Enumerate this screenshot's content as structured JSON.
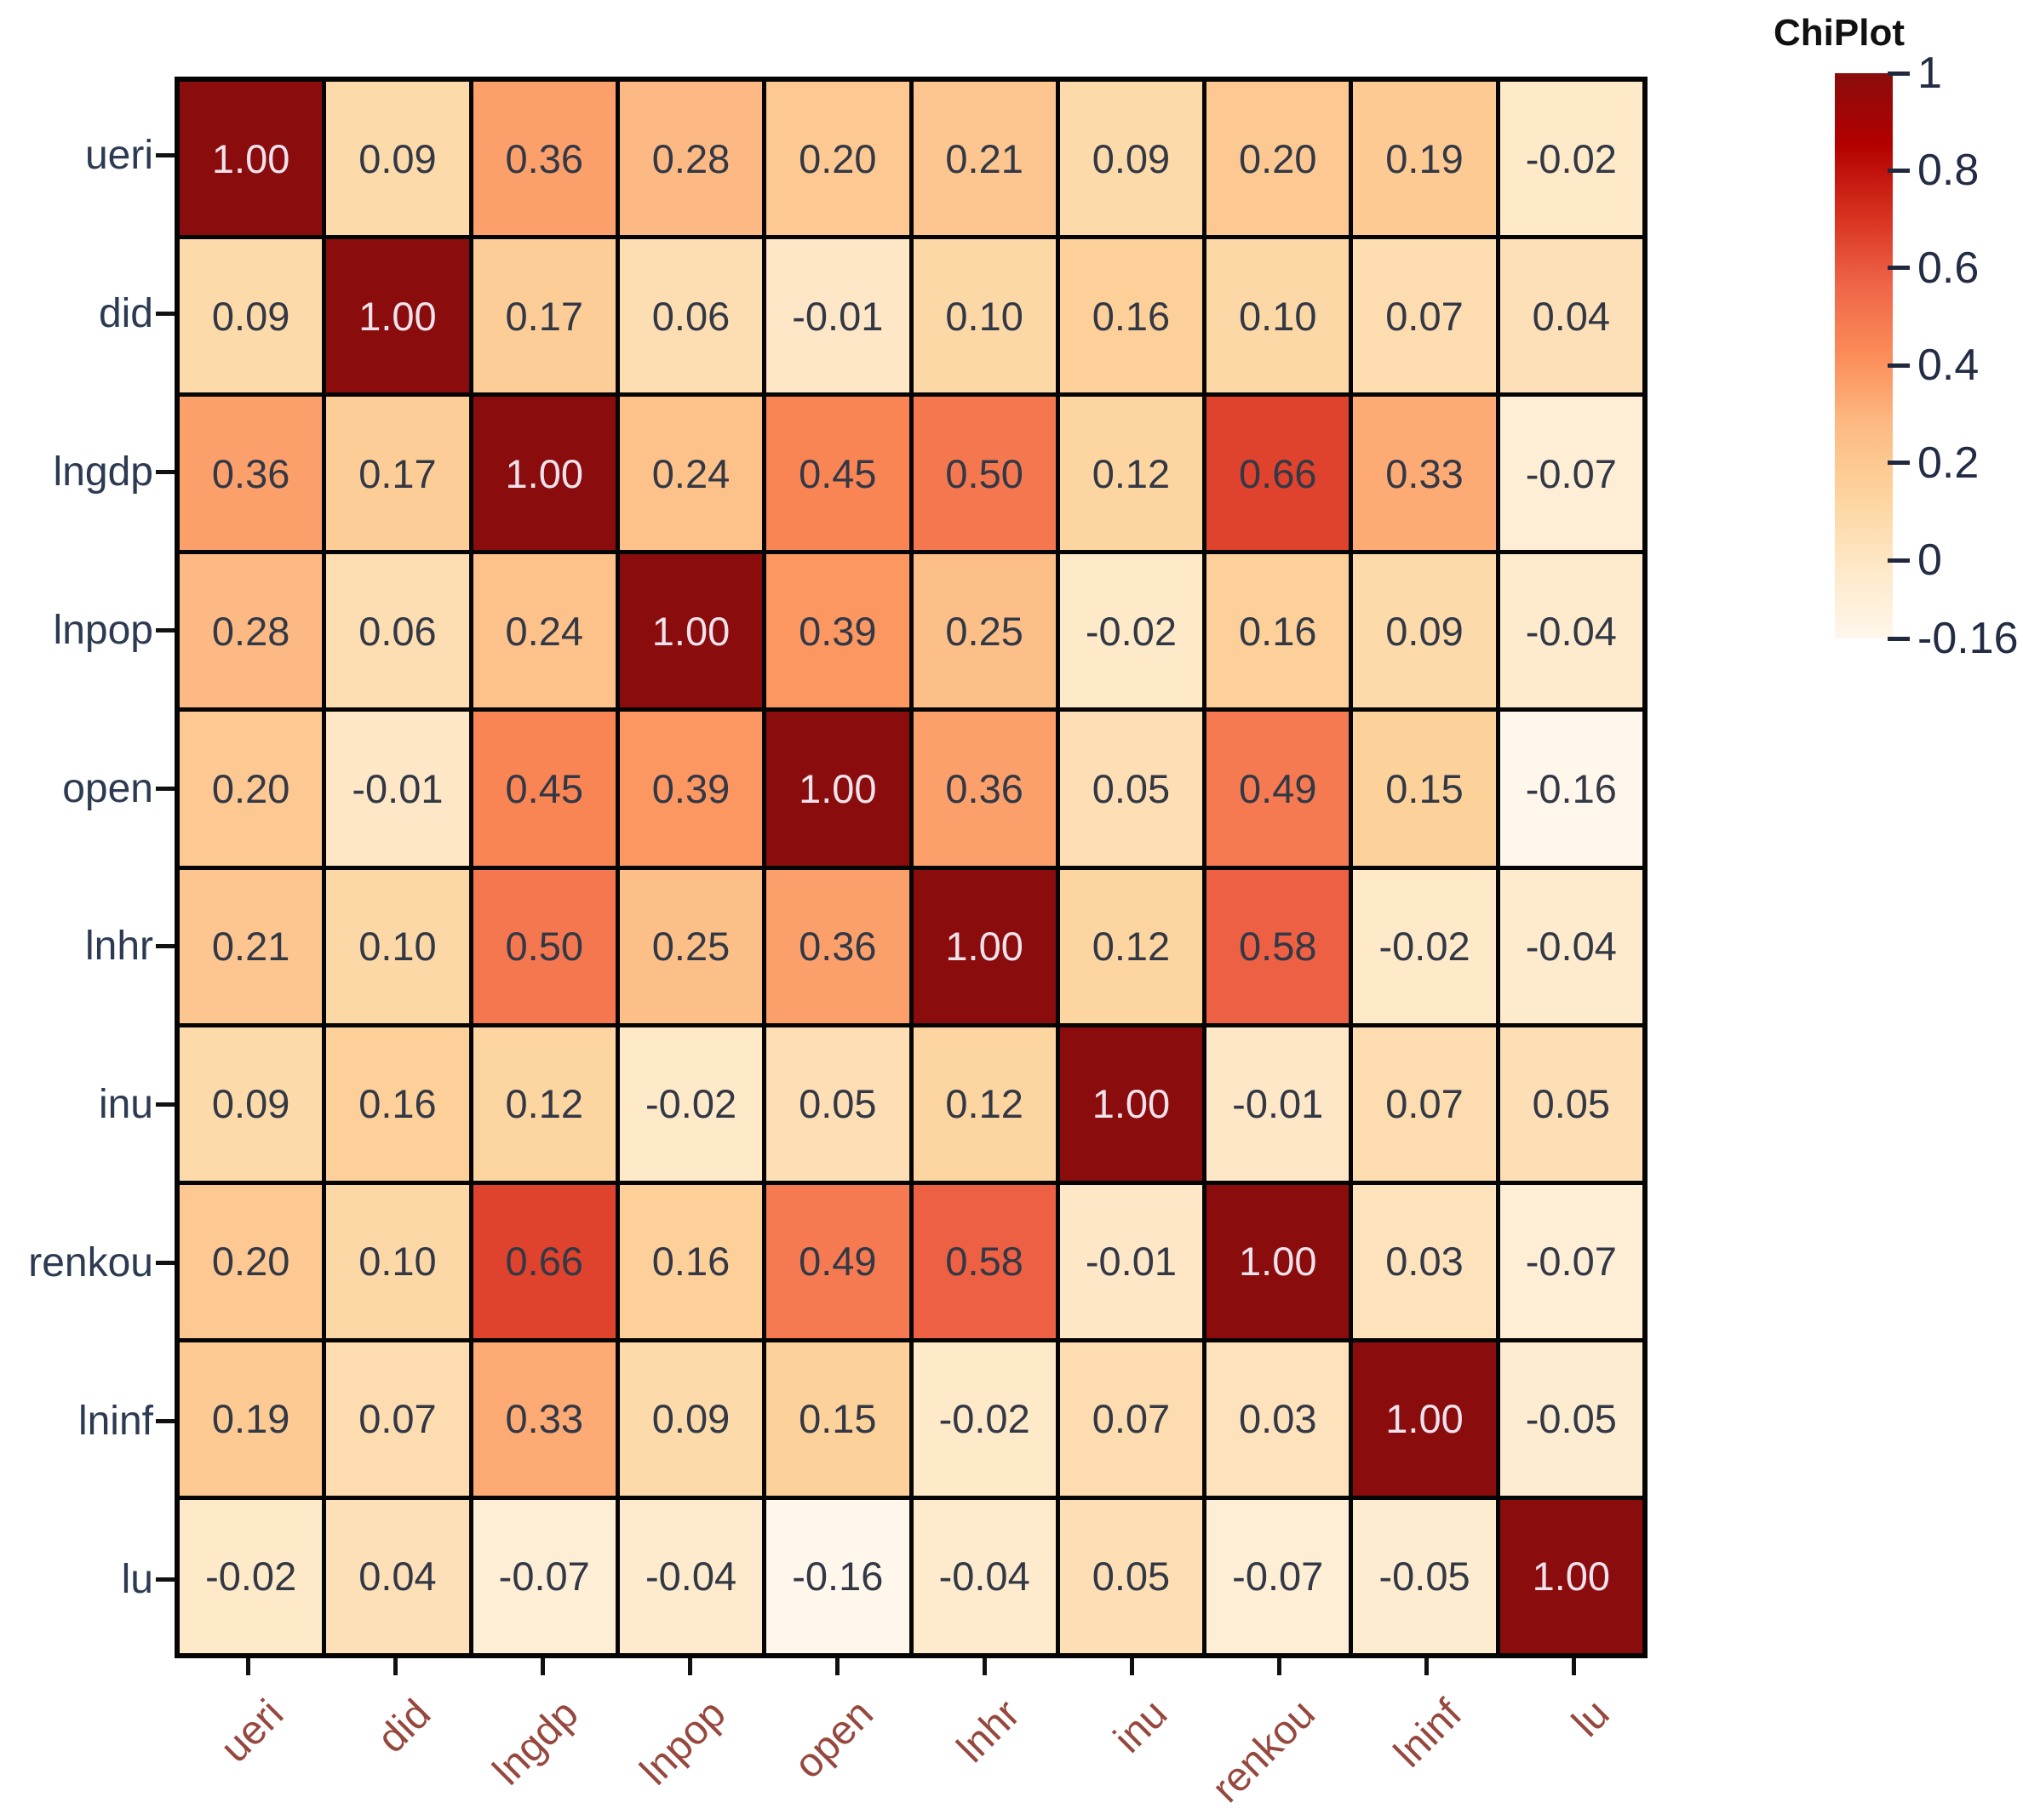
{
  "chart_data": {
    "type": "heatmap",
    "title": "",
    "legend_title": "ChiPlot",
    "variables": [
      "ueri",
      "did",
      "lngdp",
      "lnpop",
      "open",
      "lnhr",
      "inu",
      "renkou",
      "lninf",
      "lu"
    ],
    "matrix": [
      [
        1.0,
        0.09,
        0.36,
        0.28,
        0.2,
        0.21,
        0.09,
        0.2,
        0.19,
        -0.02
      ],
      [
        0.09,
        1.0,
        0.17,
        0.06,
        -0.01,
        0.1,
        0.16,
        0.1,
        0.07,
        0.04
      ],
      [
        0.36,
        0.17,
        1.0,
        0.24,
        0.45,
        0.5,
        0.12,
        0.66,
        0.33,
        -0.07
      ],
      [
        0.28,
        0.06,
        0.24,
        1.0,
        0.39,
        0.25,
        -0.02,
        0.16,
        0.09,
        -0.04
      ],
      [
        0.2,
        -0.01,
        0.45,
        0.39,
        1.0,
        0.36,
        0.05,
        0.49,
        0.15,
        -0.16
      ],
      [
        0.21,
        0.1,
        0.5,
        0.25,
        0.36,
        1.0,
        0.12,
        0.58,
        -0.02,
        -0.04
      ],
      [
        0.09,
        0.16,
        0.12,
        -0.02,
        0.05,
        0.12,
        1.0,
        -0.01,
        0.07,
        0.05
      ],
      [
        0.2,
        0.1,
        0.66,
        0.16,
        0.49,
        0.58,
        -0.01,
        1.0,
        0.03,
        -0.07
      ],
      [
        0.19,
        0.07,
        0.33,
        0.09,
        0.15,
        -0.02,
        0.07,
        0.03,
        1.0,
        -0.05
      ],
      [
        -0.02,
        0.04,
        -0.07,
        -0.04,
        -0.16,
        -0.04,
        0.05,
        -0.07,
        -0.05,
        1.0
      ]
    ],
    "value_decimals": 2,
    "colorbar": {
      "min": -0.16,
      "max": 1,
      "tick_values": [
        1,
        0.8,
        0.6,
        0.4,
        0.2,
        0,
        -0.16
      ],
      "tick_labels": [
        "1",
        "0.8",
        "0.6",
        "0.4",
        "0.2",
        "0",
        "-0.16"
      ],
      "palette": [
        "#fff7ec",
        "#fee8c8",
        "#fdd49e",
        "#fdbb84",
        "#fc8d59",
        "#ef6548",
        "#d7301f",
        "#b30000",
        "#8a0c0c"
      ]
    },
    "colors": {
      "cell_text_dark": "#333845",
      "cell_text_light": "#efe2ec",
      "grid_line": "#050505",
      "x_label": "#96483e",
      "y_label": "#2c3a52",
      "legend_text": "#232c45"
    },
    "layout_hints": {
      "legend_position": "right",
      "x_label_angle_deg": 45,
      "grid_on": true
    }
  }
}
